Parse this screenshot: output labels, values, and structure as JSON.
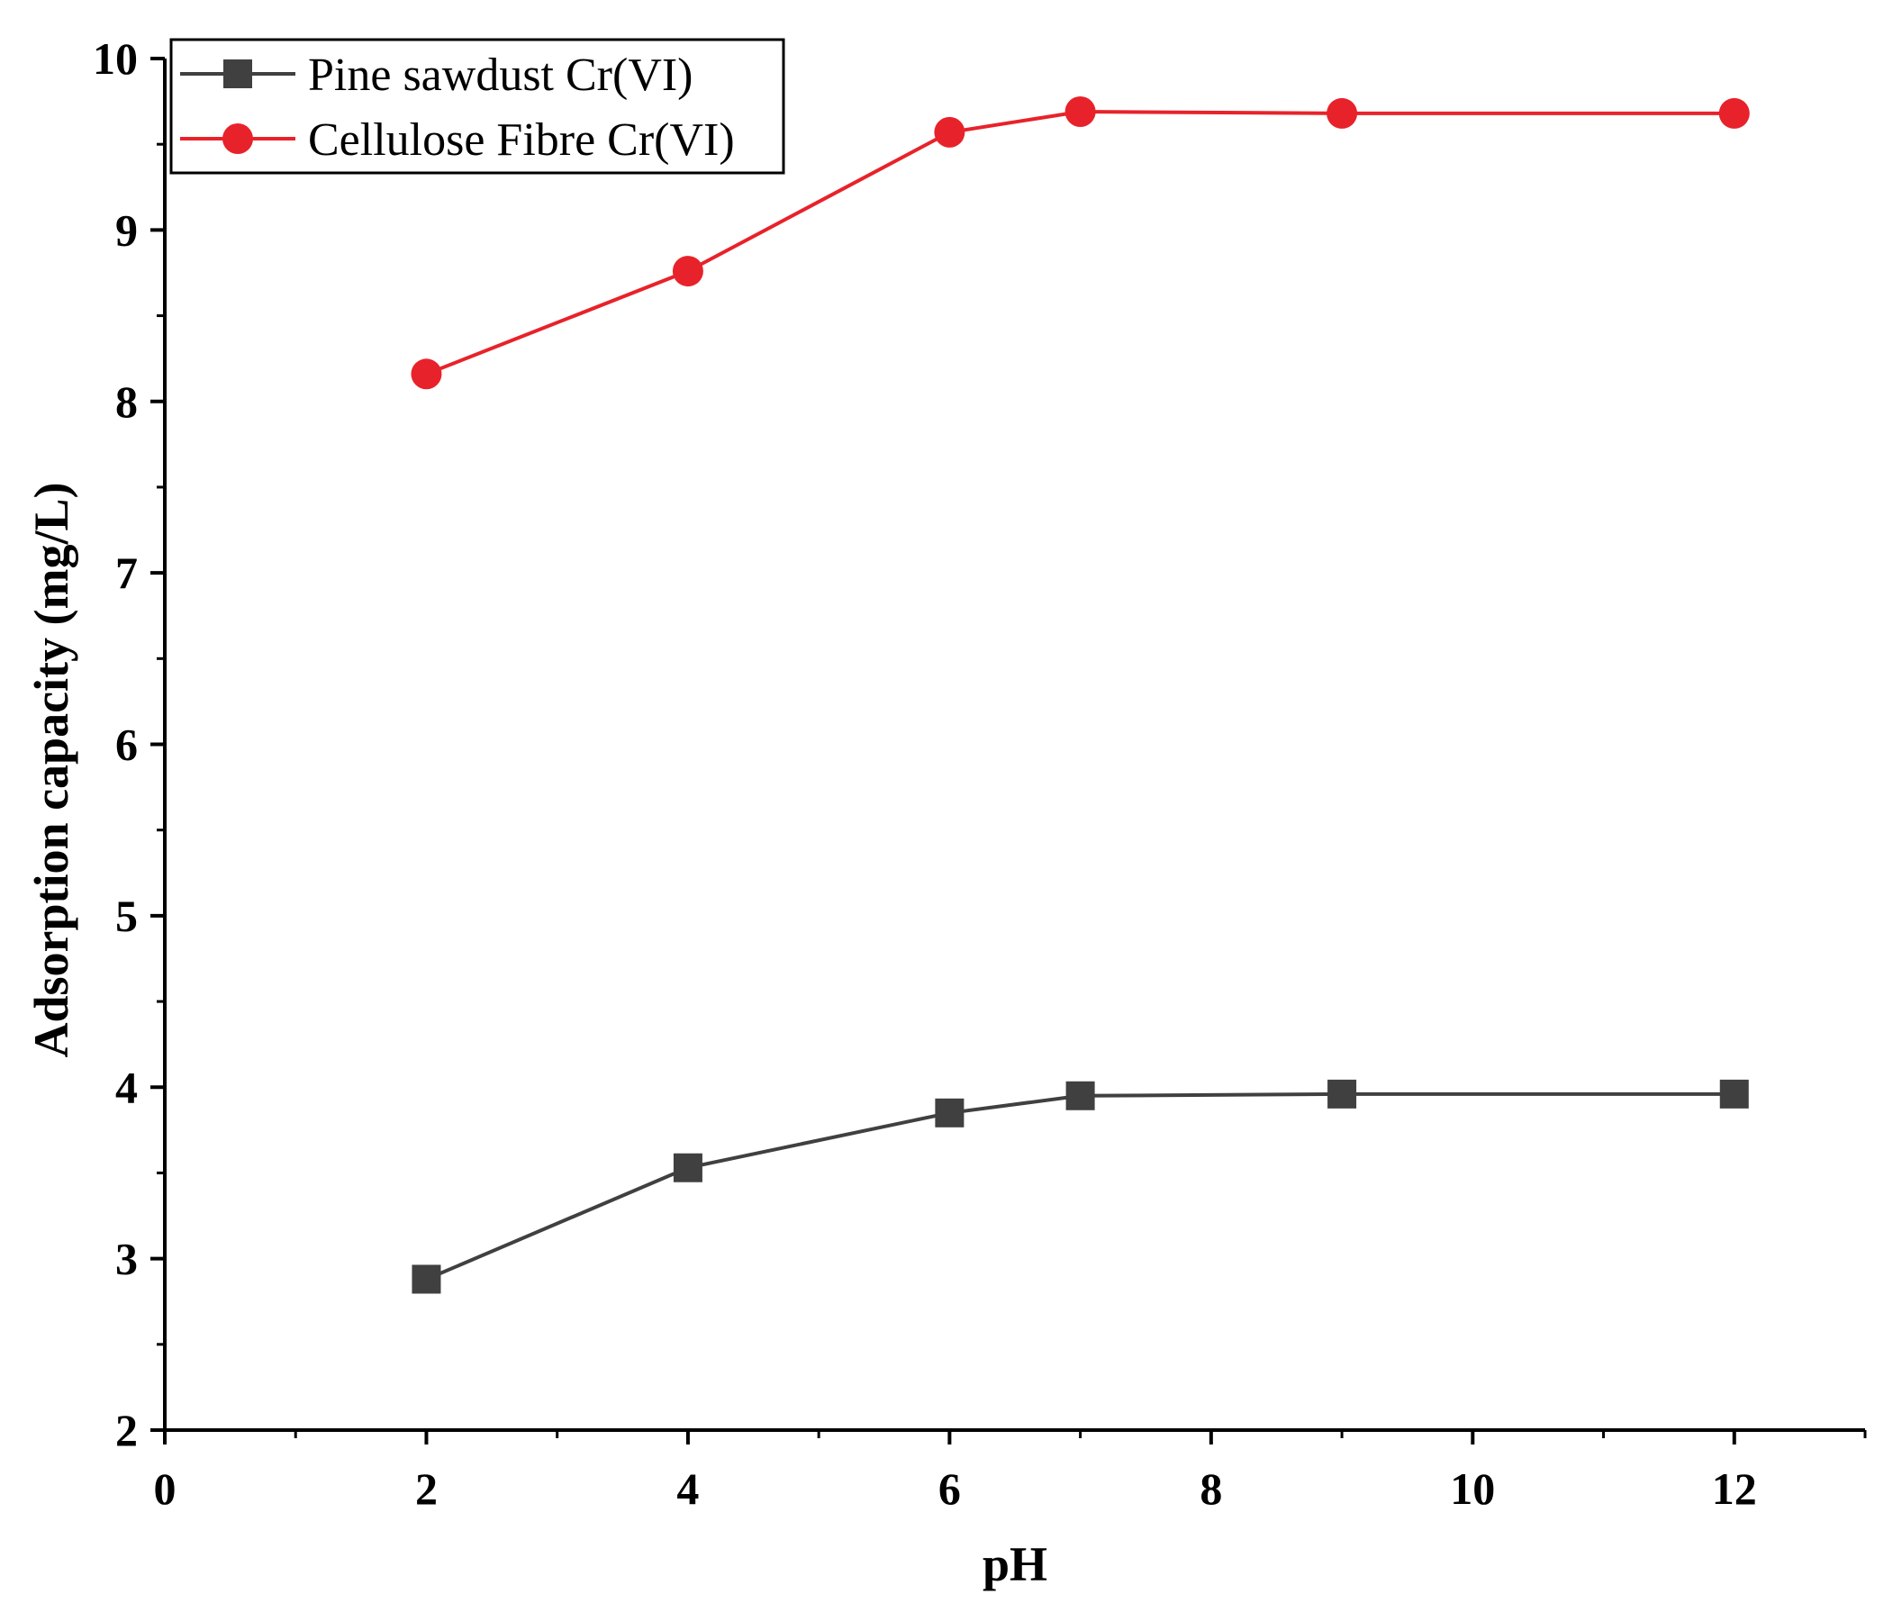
{
  "chart_data": {
    "type": "line",
    "title": "",
    "xlabel": "pH",
    "ylabel": "Adsorption capacity (mg/L)",
    "xlim": [
      0,
      13
    ],
    "ylim": [
      2,
      10
    ],
    "x_ticks": [
      0,
      2,
      4,
      6,
      8,
      10,
      12
    ],
    "x_tick_labels": [
      "0",
      "2",
      "4",
      "6",
      "8",
      "10",
      "12"
    ],
    "y_ticks": [
      2,
      3,
      4,
      5,
      6,
      7,
      8,
      9,
      10
    ],
    "y_tick_labels": [
      "2",
      "3",
      "4",
      "5",
      "6",
      "7",
      "8",
      "9",
      "10"
    ],
    "grid": false,
    "legend_position": "top-left",
    "x": [
      2,
      4,
      6,
      7,
      9,
      12
    ],
    "series": [
      {
        "name": "Pine sawdust Cr(VI)",
        "color": "#404040",
        "marker": "square",
        "values": [
          2.88,
          3.53,
          3.85,
          3.95,
          3.96,
          3.96
        ]
      },
      {
        "name": "Cellulose Fibre Cr(VI)",
        "color": "#e8222a",
        "marker": "circle",
        "values": [
          8.16,
          8.76,
          9.57,
          9.69,
          9.68,
          9.68
        ]
      }
    ]
  }
}
